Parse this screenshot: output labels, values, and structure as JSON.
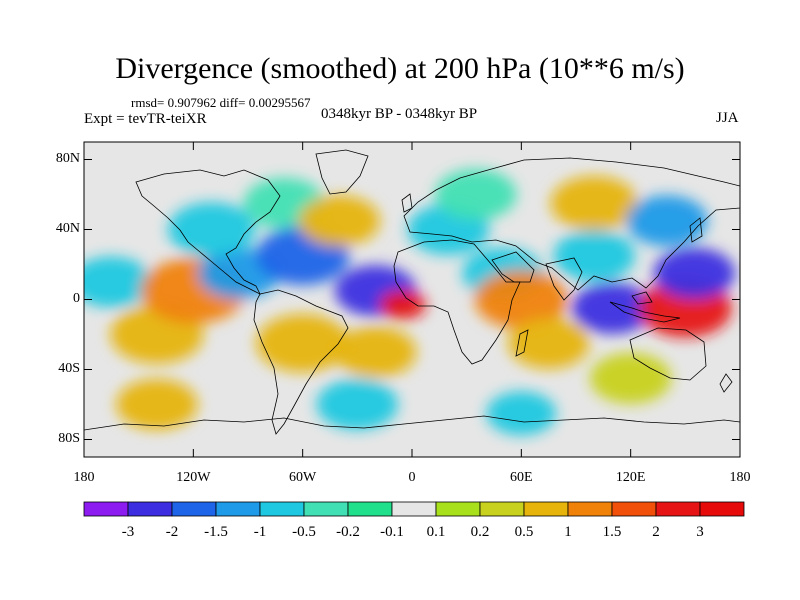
{
  "chart_data": {
    "type": "heatmap",
    "title": "Divergence (smoothed) at 200 hPa (10**6 m/s)",
    "stats_line": "rmsd= 0.907962 diff= 0.00295567",
    "experiment": "Expt = tevTR-teiXR",
    "period": "0348kyr BP - 0348kyr BP",
    "season": "JJA",
    "x_ticks": [
      {
        "lon": -180,
        "label": "180"
      },
      {
        "lon": -120,
        "label": "120W"
      },
      {
        "lon": -60,
        "label": "60W"
      },
      {
        "lon": 0,
        "label": "0"
      },
      {
        "lon": 60,
        "label": "60E"
      },
      {
        "lon": 120,
        "label": "120E"
      },
      {
        "lon": 180,
        "label": "180"
      }
    ],
    "y_ticks": [
      {
        "lat": 80,
        "label": "80N"
      },
      {
        "lat": 40,
        "label": "40N"
      },
      {
        "lat": 0,
        "label": "0"
      },
      {
        "lat": -40,
        "label": "40S"
      },
      {
        "lat": -80,
        "label": "80S"
      }
    ],
    "xlim": [
      -180,
      180
    ],
    "ylim": [
      -90,
      90
    ],
    "colorbar": {
      "labels": [
        "-3",
        "-2",
        "-1.5",
        "-1",
        "-0.5",
        "-0.2",
        "-0.1",
        "0.1",
        "0.2",
        "0.5",
        "1",
        "1.5",
        "2",
        "3"
      ],
      "colors": [
        "#8c1cf0",
        "#3c2ee0",
        "#1e64e8",
        "#1e9ae8",
        "#1ec8e0",
        "#40e0b4",
        "#20e08c",
        "#e6e6e6",
        "#a8e01c",
        "#c8d21e",
        "#e6b40a",
        "#f0820a",
        "#f0500a",
        "#e61414",
        "#e60a0a"
      ]
    },
    "fields": [
      {
        "lon": -165,
        "lat": 10,
        "r": 14,
        "level": 4,
        "label": "W Pacific cyan"
      },
      {
        "lon": -140,
        "lat": -20,
        "r": 16,
        "level": 10,
        "label": "SE Pacific orange"
      },
      {
        "lon": -120,
        "lat": 5,
        "r": 18,
        "level": 11,
        "label": "E Pacific orange"
      },
      {
        "lon": -95,
        "lat": 15,
        "r": 14,
        "level": 3,
        "label": "C America blue"
      },
      {
        "lon": -110,
        "lat": 40,
        "r": 15,
        "level": 4,
        "label": "N America cyan"
      },
      {
        "lon": -70,
        "lat": 55,
        "r": 14,
        "level": 5,
        "label": "Canada cyan"
      },
      {
        "lon": -60,
        "lat": 25,
        "r": 16,
        "level": 2,
        "label": "Atlantic blue"
      },
      {
        "lon": -40,
        "lat": 45,
        "r": 14,
        "level": 10,
        "label": "N Atlantic orange"
      },
      {
        "lon": -60,
        "lat": -25,
        "r": 16,
        "level": 10,
        "label": "S America orange"
      },
      {
        "lon": -20,
        "lat": -30,
        "r": 14,
        "level": 10,
        "label": "S Atlantic orange"
      },
      {
        "lon": -20,
        "lat": 5,
        "r": 14,
        "level": 1,
        "label": "Equatorial Atlantic purple"
      },
      {
        "lon": -5,
        "lat": -3,
        "r": 8,
        "level": 13,
        "label": "Gulf of Guinea red"
      },
      {
        "lon": 20,
        "lat": 40,
        "r": 14,
        "level": 4,
        "label": "Europe cyan"
      },
      {
        "lon": 35,
        "lat": 60,
        "r": 14,
        "level": 5,
        "label": "Russia cyan"
      },
      {
        "lon": 50,
        "lat": 15,
        "r": 14,
        "level": 4,
        "label": "Arabia cyan"
      },
      {
        "lon": 60,
        "lat": 0,
        "r": 16,
        "level": 11,
        "label": "W Indian Ocean orange"
      },
      {
        "lon": 75,
        "lat": -25,
        "r": 14,
        "level": 10,
        "label": "S Indian Ocean orange"
      },
      {
        "lon": 100,
        "lat": 55,
        "r": 15,
        "level": 10,
        "label": "Siberia orange"
      },
      {
        "lon": 100,
        "lat": 25,
        "r": 14,
        "level": 4,
        "label": "Tibet cyan"
      },
      {
        "lon": 110,
        "lat": -5,
        "r": 14,
        "level": 1,
        "label": "Maritime continent purple"
      },
      {
        "lon": 150,
        "lat": -5,
        "r": 16,
        "level": 13,
        "label": "W Pacific red"
      },
      {
        "lon": 155,
        "lat": 15,
        "r": 14,
        "level": 1,
        "label": "NW Pacific purple"
      },
      {
        "lon": 140,
        "lat": 45,
        "r": 14,
        "level": 3,
        "label": "N Pacific blue"
      },
      {
        "lon": 120,
        "lat": -45,
        "r": 14,
        "level": 9,
        "label": "S Ocean yellow"
      },
      {
        "lon": -30,
        "lat": -60,
        "r": 14,
        "level": 4,
        "label": "S Ocean cyan"
      },
      {
        "lon": 60,
        "lat": -65,
        "r": 12,
        "level": 4,
        "label": "Antarctic cyan"
      },
      {
        "lon": -140,
        "lat": -60,
        "r": 14,
        "level": 10,
        "label": "Amundsen orange"
      }
    ]
  }
}
